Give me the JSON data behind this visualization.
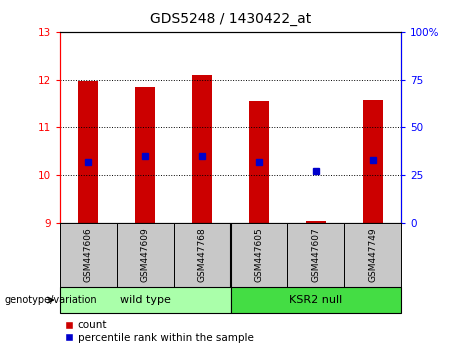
{
  "title": "GDS5248 / 1430422_at",
  "samples": [
    "GSM447606",
    "GSM447609",
    "GSM447768",
    "GSM447605",
    "GSM447607",
    "GSM447749"
  ],
  "groups": [
    "wild type",
    "wild type",
    "wild type",
    "KSR2 null",
    "KSR2 null",
    "KSR2 null"
  ],
  "group_labels": [
    "wild type",
    "KSR2 null"
  ],
  "count_values": [
    11.97,
    11.85,
    12.1,
    11.55,
    9.05,
    11.57
  ],
  "percentile_values": [
    32,
    35,
    35,
    32,
    27,
    33
  ],
  "ylim_left": [
    9,
    13
  ],
  "ylim_right": [
    0,
    100
  ],
  "yticks_left": [
    9,
    10,
    11,
    12,
    13
  ],
  "yticks_right": [
    0,
    25,
    50,
    75,
    100
  ],
  "bar_color": "#CC0000",
  "percentile_color": "#0000CC",
  "bar_bottom": 9,
  "bar_width": 0.35,
  "grid_color": "black",
  "plot_bg_color": "#FFFFFF",
  "legend_count_label": "count",
  "legend_percentile_label": "percentile rank within the sample",
  "genotype_label": "genotype/variation",
  "sample_bg_color": "#C8C8C8",
  "wt_color": "#AAFFAA",
  "ksr_color": "#44DD44",
  "title_fontsize": 10,
  "tick_fontsize": 7.5,
  "sample_fontsize": 6.5,
  "geno_fontsize": 8,
  "legend_fontsize": 7.5
}
